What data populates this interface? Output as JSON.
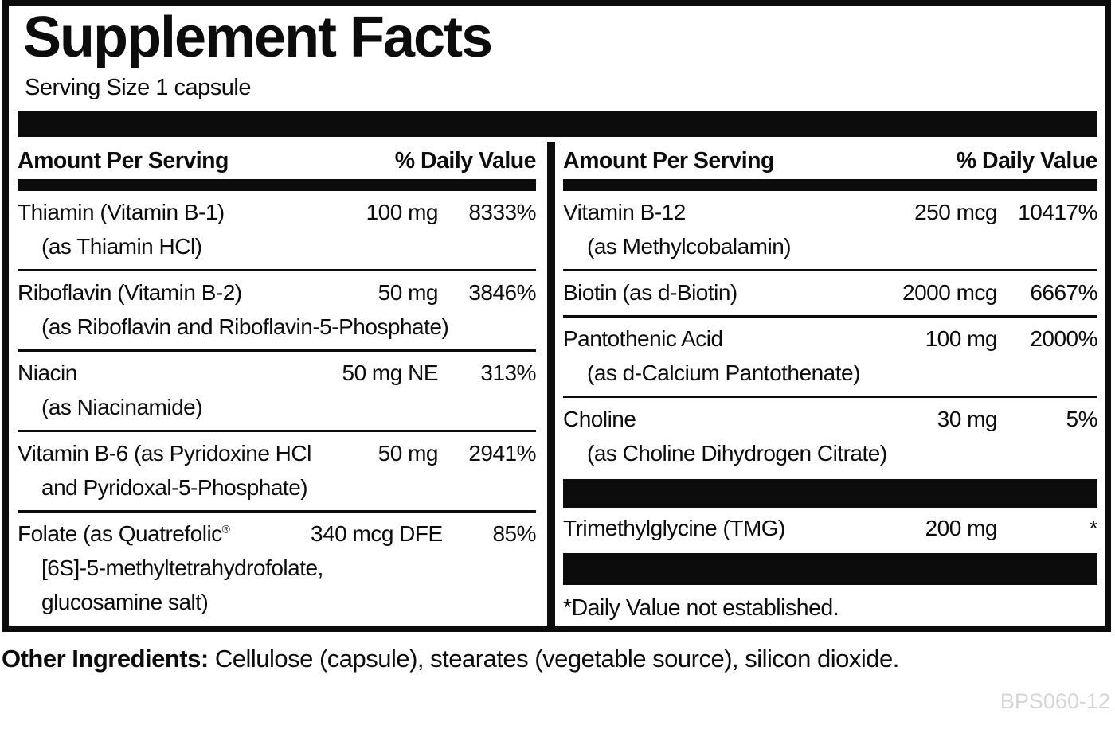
{
  "title": "Supplement Facts",
  "serving_size": "Serving Size 1 capsule",
  "headers": {
    "amount": "Amount Per Serving",
    "dv": "% Daily Value"
  },
  "left_rows": [
    {
      "name": "Thiamin (Vitamin B-1)",
      "sub": [
        "(as Thiamin HCl)"
      ],
      "amount": "100 mg",
      "dv": "8333%"
    },
    {
      "name": "Riboflavin (Vitamin B-2)",
      "sub": [
        "(as Riboflavin and Riboflavin-5-Phosphate)"
      ],
      "amount": "50 mg",
      "dv": "3846%"
    },
    {
      "name": "Niacin",
      "sub": [
        "(as Niacinamide)"
      ],
      "amount": "50 mg NE",
      "dv": "313%"
    },
    {
      "name": "Vitamin B-6 (as Pyridoxine HCl",
      "sub": [
        "and Pyridoxal-5-Phosphate)"
      ],
      "amount": "50 mg",
      "dv": "2941%"
    },
    {
      "name": "Folate (as Quatrefolic",
      "name_sup": "®",
      "sub": [
        "[6S]-5-methyltetrahydrofolate,",
        "glucosamine salt)"
      ],
      "amount": "340 mcg DFE",
      "dv": "85%"
    }
  ],
  "right_rows": [
    {
      "name": "Vitamin B-12",
      "sub": [
        "(as Methylcobalamin)"
      ],
      "amount": "250 mcg",
      "dv": "10417%"
    },
    {
      "name": "Biotin (as d-Biotin)",
      "amount": "2000 mcg",
      "dv": "6667%"
    },
    {
      "name": "Pantothenic Acid",
      "sub": [
        "(as d-Calcium Pantothenate)"
      ],
      "amount": "100 mg",
      "dv": "2000%"
    },
    {
      "name": "Choline",
      "sub": [
        "(as Choline Dihydrogen Citrate)"
      ],
      "amount": "30 mg",
      "dv": "5%"
    }
  ],
  "tmg_row": {
    "name": "Trimethylglycine (TMG)",
    "amount": "200 mg",
    "dv": "*"
  },
  "footnote": "*Daily Value not established.",
  "other_ingredients": {
    "label": "Other Ingredients:",
    "text": " Cellulose (capsule), stearates (vegetable source), silicon dioxide."
  },
  "product_code": "BPS060-12",
  "colors": {
    "ink": "#0c0c0c",
    "code": "#d6d6d6",
    "paper": "#ffffff"
  }
}
